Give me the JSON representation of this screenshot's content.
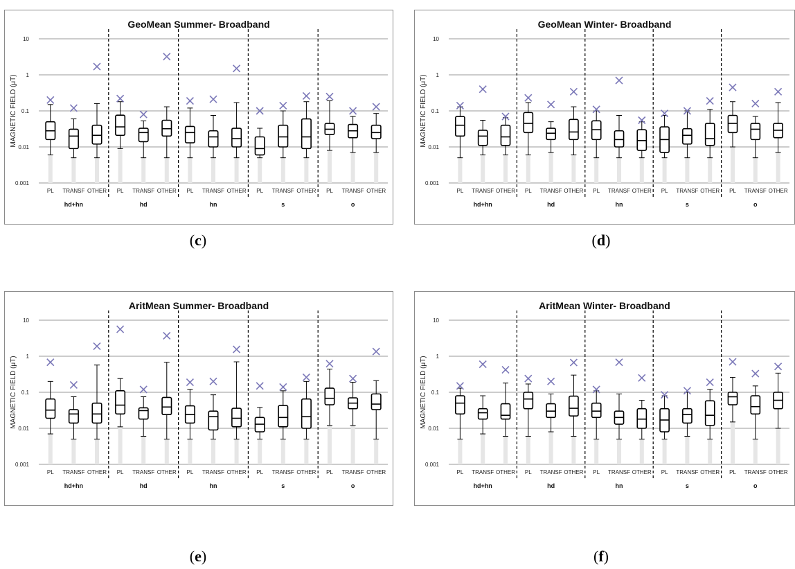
{
  "chart_data": [
    {
      "id": "c",
      "type": "box",
      "title": "GeoMean Summer- Broadband",
      "caption_letter": "c",
      "ylabel": "MAGNETIC FIELD (μT)",
      "yscale": "log",
      "ylim": [
        0.001,
        10
      ],
      "yticks": [
        "0.001",
        "0.01",
        "0.1",
        "1",
        "10"
      ],
      "groups": [
        "hd+hn",
        "hd",
        "hn",
        "s",
        "o"
      ],
      "categories": [
        "PL",
        "TRANSF",
        "OTHER"
      ],
      "boxes": [
        {
          "group": "hd+hn",
          "category": "PL",
          "min": 0.006,
          "q1": 0.016,
          "median": 0.028,
          "q3": 0.05,
          "max": 0.15,
          "mean": 0.2
        },
        {
          "group": "hd+hn",
          "category": "TRANSF",
          "min": 0.005,
          "q1": 0.009,
          "median": 0.02,
          "q3": 0.031,
          "max": 0.06,
          "mean": 0.12
        },
        {
          "group": "hd+hn",
          "category": "OTHER",
          "min": 0.005,
          "q1": 0.012,
          "median": 0.021,
          "q3": 0.04,
          "max": 0.16,
          "mean": 1.7
        },
        {
          "group": "hd",
          "category": "PL",
          "min": 0.009,
          "q1": 0.021,
          "median": 0.036,
          "q3": 0.076,
          "max": 0.18,
          "mean": 0.22
        },
        {
          "group": "hd",
          "category": "TRANSF",
          "min": 0.005,
          "q1": 0.014,
          "median": 0.025,
          "q3": 0.033,
          "max": 0.053,
          "mean": 0.08
        },
        {
          "group": "hd",
          "category": "OTHER",
          "min": 0.005,
          "q1": 0.02,
          "median": 0.032,
          "q3": 0.055,
          "max": 0.13,
          "mean": 3.2
        },
        {
          "group": "hn",
          "category": "PL",
          "min": 0.005,
          "q1": 0.013,
          "median": 0.025,
          "q3": 0.037,
          "max": 0.12,
          "mean": 0.19
        },
        {
          "group": "hn",
          "category": "TRANSF",
          "min": 0.005,
          "q1": 0.01,
          "median": 0.019,
          "q3": 0.028,
          "max": 0.075,
          "mean": 0.21
        },
        {
          "group": "hn",
          "category": "OTHER",
          "min": 0.005,
          "q1": 0.01,
          "median": 0.017,
          "q3": 0.033,
          "max": 0.17,
          "mean": 1.5
        },
        {
          "group": "s",
          "category": "PL",
          "min": 0.005,
          "q1": 0.006,
          "median": 0.009,
          "q3": 0.019,
          "max": 0.033,
          "mean": 0.1
        },
        {
          "group": "s",
          "category": "TRANSF",
          "min": 0.005,
          "q1": 0.01,
          "median": 0.019,
          "q3": 0.04,
          "max": 0.1,
          "mean": 0.14
        },
        {
          "group": "s",
          "category": "OTHER",
          "min": 0.005,
          "q1": 0.009,
          "median": 0.019,
          "q3": 0.06,
          "max": 0.18,
          "mean": 0.26
        },
        {
          "group": "o",
          "category": "PL",
          "min": 0.008,
          "q1": 0.022,
          "median": 0.031,
          "q3": 0.045,
          "max": 0.19,
          "mean": 0.25
        },
        {
          "group": "o",
          "category": "TRANSF",
          "min": 0.007,
          "q1": 0.018,
          "median": 0.028,
          "q3": 0.042,
          "max": 0.07,
          "mean": 0.1
        },
        {
          "group": "o",
          "category": "OTHER",
          "min": 0.007,
          "q1": 0.017,
          "median": 0.025,
          "q3": 0.04,
          "max": 0.085,
          "mean": 0.13
        }
      ]
    },
    {
      "id": "d",
      "type": "box",
      "title": "GeoMean Winter- Broadband",
      "caption_letter": "d",
      "ylabel": "MAGNETIC FIELD (μT)",
      "yscale": "log",
      "ylim": [
        0.001,
        10
      ],
      "yticks": [
        "0.001",
        "0.01",
        "0.1",
        "1",
        "10"
      ],
      "groups": [
        "hd+hn",
        "hd",
        "hn",
        "s",
        "o"
      ],
      "categories": [
        "PL",
        "TRANSF",
        "OTHER"
      ],
      "boxes": [
        {
          "group": "hd+hn",
          "category": "PL",
          "min": 0.005,
          "q1": 0.02,
          "median": 0.04,
          "q3": 0.07,
          "max": 0.13,
          "mean": 0.14
        },
        {
          "group": "hd+hn",
          "category": "TRANSF",
          "min": 0.006,
          "q1": 0.011,
          "median": 0.02,
          "q3": 0.029,
          "max": 0.055,
          "mean": 0.4
        },
        {
          "group": "hd+hn",
          "category": "OTHER",
          "min": 0.006,
          "q1": 0.011,
          "median": 0.019,
          "q3": 0.04,
          "max": 0.065,
          "mean": 0.07
        },
        {
          "group": "hd",
          "category": "PL",
          "min": 0.006,
          "q1": 0.025,
          "median": 0.045,
          "q3": 0.09,
          "max": 0.17,
          "mean": 0.23
        },
        {
          "group": "hd",
          "category": "TRANSF",
          "min": 0.007,
          "q1": 0.016,
          "median": 0.024,
          "q3": 0.033,
          "max": 0.05,
          "mean": 0.15
        },
        {
          "group": "hd",
          "category": "OTHER",
          "min": 0.006,
          "q1": 0.016,
          "median": 0.026,
          "q3": 0.058,
          "max": 0.13,
          "mean": 0.34
        },
        {
          "group": "hn",
          "category": "PL",
          "min": 0.005,
          "q1": 0.016,
          "median": 0.03,
          "q3": 0.053,
          "max": 0.1,
          "mean": 0.11
        },
        {
          "group": "hn",
          "category": "TRANSF",
          "min": 0.005,
          "q1": 0.01,
          "median": 0.016,
          "q3": 0.028,
          "max": 0.075,
          "mean": 0.7
        },
        {
          "group": "hn",
          "category": "OTHER",
          "min": 0.005,
          "q1": 0.008,
          "median": 0.015,
          "q3": 0.03,
          "max": 0.05,
          "mean": 0.055
        },
        {
          "group": "s",
          "category": "PL",
          "min": 0.005,
          "q1": 0.007,
          "median": 0.016,
          "q3": 0.036,
          "max": 0.075,
          "mean": 0.085
        },
        {
          "group": "s",
          "category": "TRANSF",
          "min": 0.005,
          "q1": 0.012,
          "median": 0.021,
          "q3": 0.032,
          "max": 0.1,
          "mean": 0.1
        },
        {
          "group": "s",
          "category": "OTHER",
          "min": 0.005,
          "q1": 0.011,
          "median": 0.017,
          "q3": 0.045,
          "max": 0.11,
          "mean": 0.19
        },
        {
          "group": "o",
          "category": "PL",
          "min": 0.01,
          "q1": 0.025,
          "median": 0.045,
          "q3": 0.075,
          "max": 0.18,
          "mean": 0.45
        },
        {
          "group": "o",
          "category": "TRANSF",
          "min": 0.005,
          "q1": 0.016,
          "median": 0.031,
          "q3": 0.045,
          "max": 0.07,
          "mean": 0.16
        },
        {
          "group": "o",
          "category": "OTHER",
          "min": 0.007,
          "q1": 0.018,
          "median": 0.029,
          "q3": 0.045,
          "max": 0.17,
          "mean": 0.34
        }
      ]
    },
    {
      "id": "e",
      "type": "box",
      "title": "AritMean Summer- Broadband",
      "caption_letter": "e",
      "ylabel": "MAGNETIC FIELD (μT)",
      "yscale": "log",
      "ylim": [
        0.001,
        10
      ],
      "yticks": [
        "0.001",
        "0.01",
        "0.1",
        "1",
        "10"
      ],
      "groups": [
        "hd+hn",
        "hd",
        "hn",
        "s",
        "o"
      ],
      "categories": [
        "PL",
        "TRANSF",
        "OTHER"
      ],
      "boxes": [
        {
          "group": "hd+hn",
          "category": "PL",
          "min": 0.007,
          "q1": 0.019,
          "median": 0.032,
          "q3": 0.065,
          "max": 0.2,
          "mean": 0.68
        },
        {
          "group": "hd+hn",
          "category": "TRANSF",
          "min": 0.005,
          "q1": 0.014,
          "median": 0.025,
          "q3": 0.033,
          "max": 0.075,
          "mean": 0.16
        },
        {
          "group": "hd+hn",
          "category": "OTHER",
          "min": 0.005,
          "q1": 0.014,
          "median": 0.025,
          "q3": 0.05,
          "max": 0.57,
          "mean": 1.9
        },
        {
          "group": "hd",
          "category": "PL",
          "min": 0.011,
          "q1": 0.025,
          "median": 0.044,
          "q3": 0.11,
          "max": 0.24,
          "mean": 5.6
        },
        {
          "group": "hd",
          "category": "TRANSF",
          "min": 0.006,
          "q1": 0.018,
          "median": 0.031,
          "q3": 0.037,
          "max": 0.075,
          "mean": 0.12
        },
        {
          "group": "hd",
          "category": "OTHER",
          "min": 0.005,
          "q1": 0.024,
          "median": 0.039,
          "q3": 0.072,
          "max": 0.68,
          "mean": 3.7
        },
        {
          "group": "hn",
          "category": "PL",
          "min": 0.005,
          "q1": 0.014,
          "median": 0.024,
          "q3": 0.042,
          "max": 0.12,
          "mean": 0.19
        },
        {
          "group": "hn",
          "category": "TRANSF",
          "min": 0.005,
          "q1": 0.009,
          "median": 0.021,
          "q3": 0.03,
          "max": 0.085,
          "mean": 0.2
        },
        {
          "group": "hn",
          "category": "OTHER",
          "min": 0.005,
          "q1": 0.011,
          "median": 0.019,
          "q3": 0.036,
          "max": 0.7,
          "mean": 1.55
        },
        {
          "group": "s",
          "category": "PL",
          "min": 0.005,
          "q1": 0.008,
          "median": 0.013,
          "q3": 0.02,
          "max": 0.038,
          "mean": 0.15
        },
        {
          "group": "s",
          "category": "TRANSF",
          "min": 0.005,
          "q1": 0.011,
          "median": 0.02,
          "q3": 0.043,
          "max": 0.11,
          "mean": 0.14
        },
        {
          "group": "s",
          "category": "OTHER",
          "min": 0.005,
          "q1": 0.01,
          "median": 0.021,
          "q3": 0.065,
          "max": 0.2,
          "mean": 0.26
        },
        {
          "group": "o",
          "category": "PL",
          "min": 0.012,
          "q1": 0.045,
          "median": 0.068,
          "q3": 0.13,
          "max": 0.44,
          "mean": 0.62
        },
        {
          "group": "o",
          "category": "TRANSF",
          "min": 0.012,
          "q1": 0.035,
          "median": 0.05,
          "q3": 0.07,
          "max": 0.19,
          "mean": 0.24
        },
        {
          "group": "o",
          "category": "OTHER",
          "min": 0.005,
          "q1": 0.033,
          "median": 0.047,
          "q3": 0.09,
          "max": 0.21,
          "mean": 1.35
        }
      ]
    },
    {
      "id": "f",
      "type": "box",
      "title": "AritMean Winter- Broadband",
      "caption_letter": "f",
      "ylabel": "MAGNETIC FIELD (μT)",
      "yscale": "log",
      "ylim": [
        0.001,
        10
      ],
      "yticks": [
        "0.001",
        "0.01",
        "0.1",
        "1",
        "10"
      ],
      "groups": [
        "hd+hn",
        "hd",
        "hn",
        "s",
        "o"
      ],
      "categories": [
        "PL",
        "TRANSF",
        "OTHER"
      ],
      "boxes": [
        {
          "group": "hd+hn",
          "category": "PL",
          "min": 0.005,
          "q1": 0.025,
          "median": 0.05,
          "q3": 0.08,
          "max": 0.13,
          "mean": 0.15
        },
        {
          "group": "hd+hn",
          "category": "TRANSF",
          "min": 0.007,
          "q1": 0.018,
          "median": 0.027,
          "q3": 0.035,
          "max": 0.08,
          "mean": 0.6
        },
        {
          "group": "hd+hn",
          "category": "OTHER",
          "min": 0.006,
          "q1": 0.018,
          "median": 0.023,
          "q3": 0.048,
          "max": 0.18,
          "mean": 0.42
        },
        {
          "group": "hd",
          "category": "PL",
          "min": 0.006,
          "q1": 0.035,
          "median": 0.065,
          "q3": 0.1,
          "max": 0.17,
          "mean": 0.24
        },
        {
          "group": "hd",
          "category": "TRANSF",
          "min": 0.008,
          "q1": 0.02,
          "median": 0.03,
          "q3": 0.048,
          "max": 0.09,
          "mean": 0.2
        },
        {
          "group": "hd",
          "category": "OTHER",
          "min": 0.006,
          "q1": 0.022,
          "median": 0.036,
          "q3": 0.078,
          "max": 0.3,
          "mean": 0.67
        },
        {
          "group": "hn",
          "category": "PL",
          "min": 0.005,
          "q1": 0.02,
          "median": 0.03,
          "q3": 0.05,
          "max": 0.11,
          "mean": 0.12
        },
        {
          "group": "hn",
          "category": "TRANSF",
          "min": 0.005,
          "q1": 0.013,
          "median": 0.02,
          "q3": 0.03,
          "max": 0.09,
          "mean": 0.68
        },
        {
          "group": "hn",
          "category": "OTHER",
          "min": 0.005,
          "q1": 0.01,
          "median": 0.018,
          "q3": 0.035,
          "max": 0.06,
          "mean": 0.25
        },
        {
          "group": "s",
          "category": "PL",
          "min": 0.005,
          "q1": 0.008,
          "median": 0.017,
          "q3": 0.035,
          "max": 0.08,
          "mean": 0.085
        },
        {
          "group": "s",
          "category": "TRANSF",
          "min": 0.006,
          "q1": 0.014,
          "median": 0.024,
          "q3": 0.035,
          "max": 0.1,
          "mean": 0.11
        },
        {
          "group": "s",
          "category": "OTHER",
          "min": 0.005,
          "q1": 0.012,
          "median": 0.023,
          "q3": 0.058,
          "max": 0.12,
          "mean": 0.19
        },
        {
          "group": "o",
          "category": "PL",
          "min": 0.015,
          "q1": 0.045,
          "median": 0.075,
          "q3": 0.1,
          "max": 0.26,
          "mean": 0.7
        },
        {
          "group": "o",
          "category": "TRANSF",
          "min": 0.005,
          "q1": 0.025,
          "median": 0.04,
          "q3": 0.08,
          "max": 0.15,
          "mean": 0.33
        },
        {
          "group": "o",
          "category": "OTHER",
          "min": 0.01,
          "q1": 0.035,
          "median": 0.06,
          "q3": 0.1,
          "max": 0.34,
          "mean": 0.52
        }
      ]
    }
  ],
  "theme": {
    "mean_marker_color": "#7b78b8",
    "grid_color": "#9a9a9a",
    "box_color": "#000000",
    "bg_whisker_color": "#e6e6e6"
  }
}
